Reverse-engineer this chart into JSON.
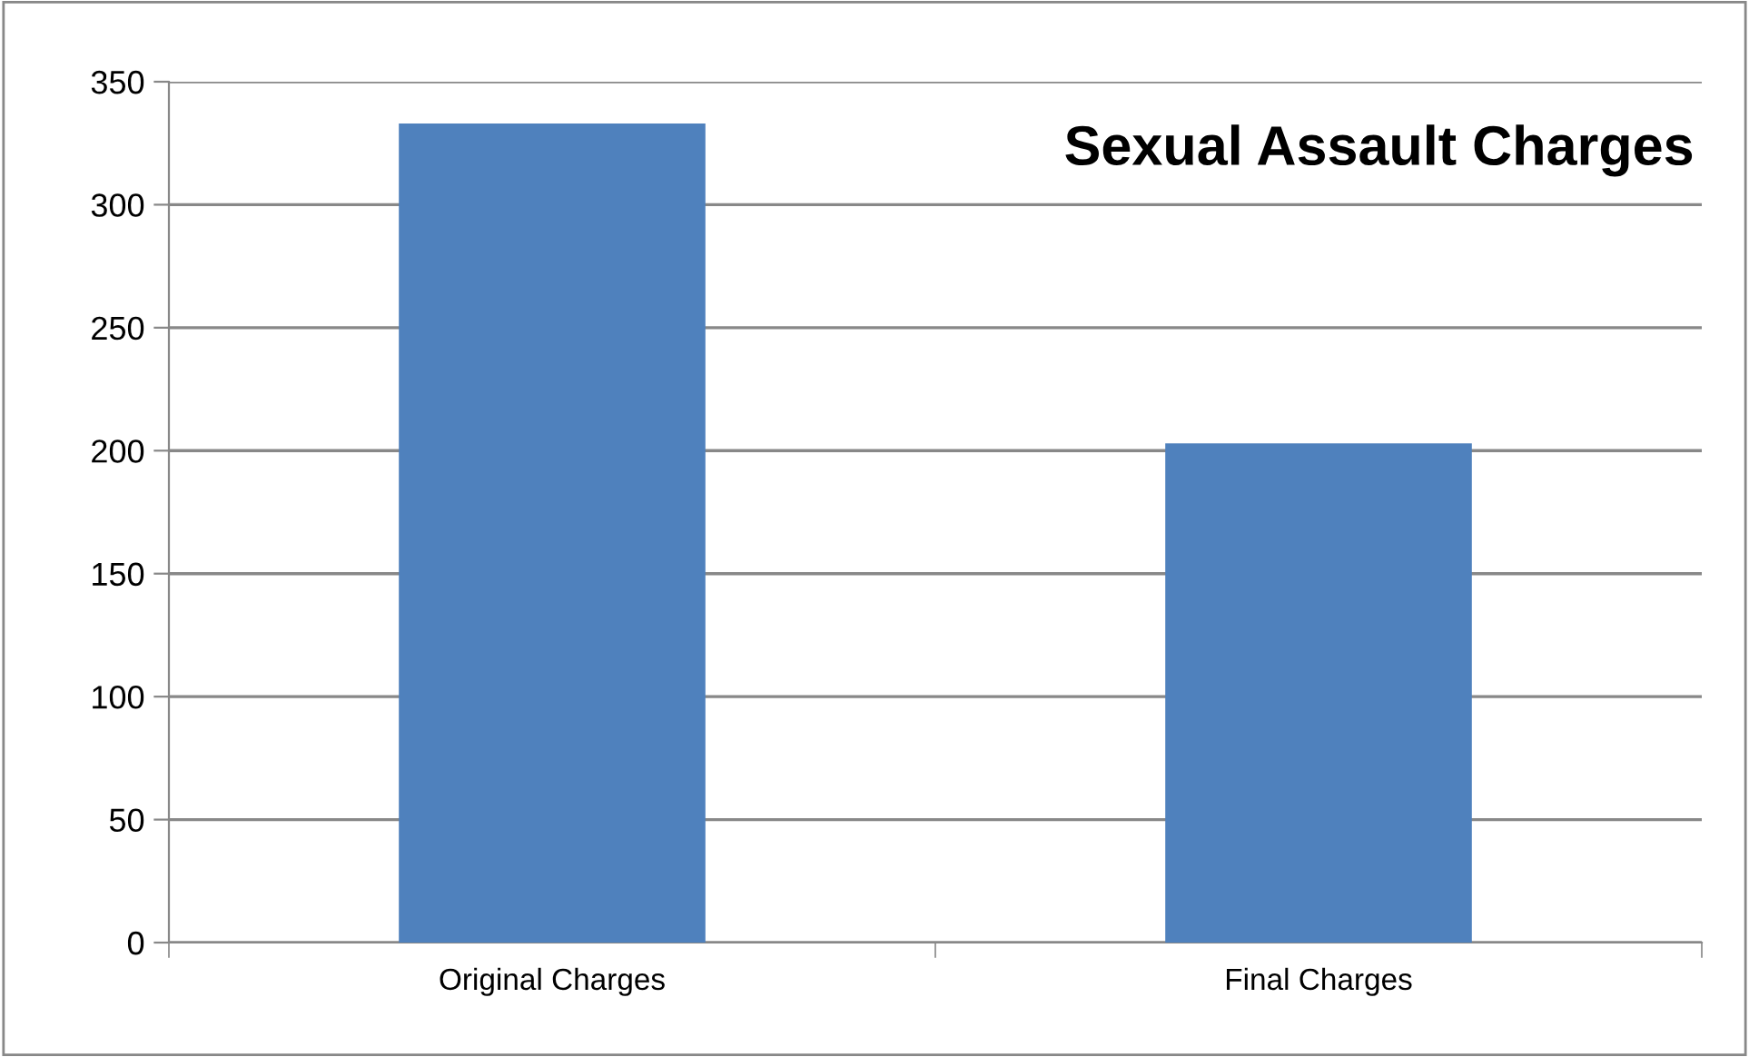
{
  "chart_data": {
    "type": "bar",
    "title": "Sexual Assault Charges",
    "categories": [
      "Original Charges",
      "Final Charges"
    ],
    "values": [
      333,
      203
    ],
    "color": "#4f81bd",
    "ylim": [
      0,
      350
    ],
    "yticks": [
      0,
      50,
      100,
      150,
      200,
      250,
      300,
      350
    ],
    "grid": "y"
  }
}
